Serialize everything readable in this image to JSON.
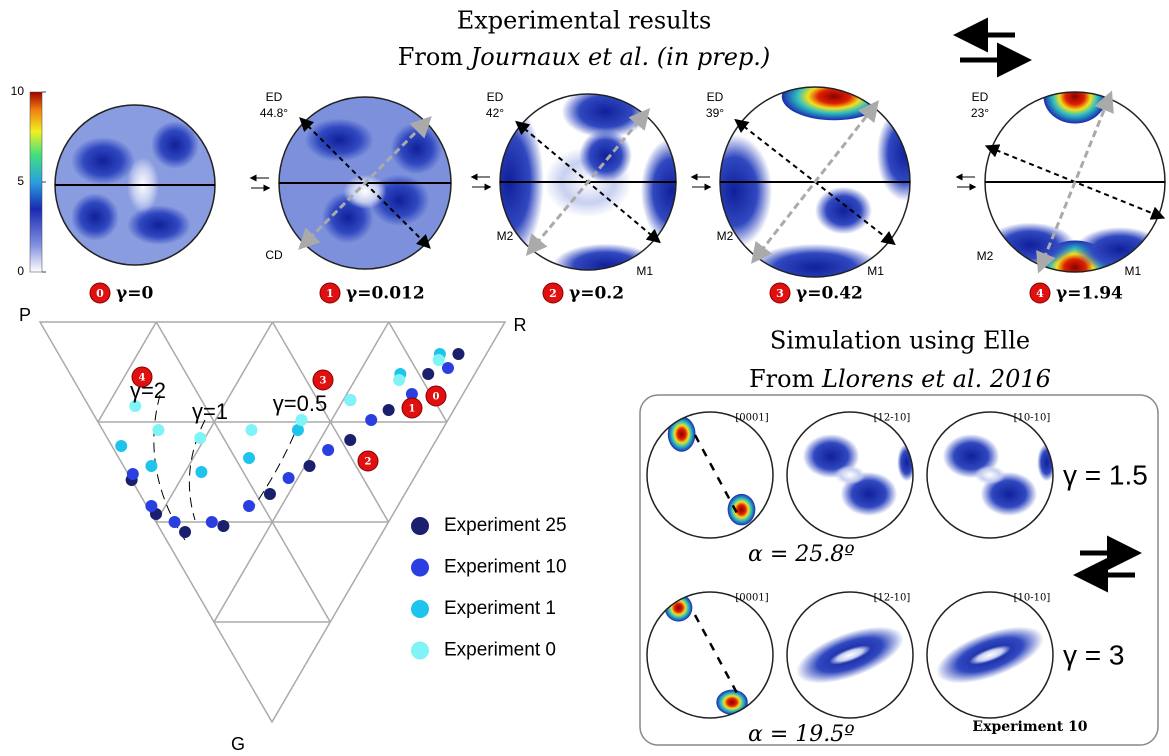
{
  "experimental": {
    "title": "Experimental results",
    "source_prefix": "From",
    "source": "Journaux et al. (in prep.)",
    "colorbar_ticks": [
      0,
      5,
      10
    ],
    "panels": [
      {
        "badge": "0",
        "strain": "γ=0"
      },
      {
        "badge": "1",
        "strain": "γ=0.012",
        "ed": "ED",
        "angle": "44.8°",
        "cd": "CD"
      },
      {
        "badge": "2",
        "strain": "γ=0.2",
        "ed": "ED",
        "angle": "42°",
        "m1": "M1",
        "m2": "M2"
      },
      {
        "badge": "3",
        "strain": "γ=0.42",
        "ed": "ED",
        "angle": "39°",
        "m1": "M1",
        "m2": "M2"
      },
      {
        "badge": "4",
        "strain": "γ=1.94",
        "ed": "ED",
        "angle": "23°",
        "m1": "M1",
        "m2": "M2"
      }
    ]
  },
  "chart_data": {
    "type": "ternary",
    "vertices": [
      "P",
      "R",
      "G"
    ],
    "annotations": [
      "γ=2",
      "γ=1",
      "γ=0.5"
    ],
    "markers": [
      "4",
      "3",
      "1",
      "0",
      "2"
    ],
    "series": [
      {
        "name": "Experiment 25",
        "color": "#1a1f6e",
        "r": [
          0.0,
          0.01,
          0.05,
          0.14,
          0.28,
          0.4,
          0.52,
          0.64,
          0.77,
          0.86
        ],
        "g": [
          0.395,
          0.48,
          0.525,
          0.51,
          0.43,
          0.36,
          0.295,
          0.22,
          0.13,
          0.08
        ]
      },
      {
        "name": "Experiment 10",
        "color": "#2b3fe0",
        "r": [
          0.01,
          0.01,
          0.04,
          0.12,
          0.22,
          0.34,
          0.46,
          0.59,
          0.71,
          0.82
        ],
        "g": [
          0.38,
          0.46,
          0.5,
          0.5,
          0.46,
          0.39,
          0.32,
          0.245,
          0.18,
          0.115
        ]
      },
      {
        "name": "Experiment 1",
        "color": "#1fc4ec",
        "r": [
          0.02,
          0.06,
          0.16,
          0.28,
          0.42,
          0.57,
          0.71,
          0.82
        ],
        "g": [
          0.31,
          0.36,
          0.375,
          0.34,
          0.27,
          0.195,
          0.13,
          0.08
        ]
      },
      {
        "name": "Experiment 0",
        "color": "#7ff3f5",
        "r": [
          0.1,
          0.12,
          0.2,
          0.32,
          0.44,
          0.57,
          0.7,
          0.81
        ],
        "g": [
          0.21,
          0.27,
          0.29,
          0.27,
          0.245,
          0.195,
          0.145,
          0.095
        ]
      }
    ]
  },
  "simulation": {
    "title": "Simulation using Elle",
    "source_prefix": "From",
    "source": "Llorens et al. 2016",
    "axes": [
      "[0001]",
      "[12-10]",
      "[10-10]"
    ],
    "rows": [
      {
        "strain": "γ = 1.5",
        "alpha": "α = 25.8º"
      },
      {
        "strain": "γ = 3",
        "alpha": "α = 19.5º"
      }
    ],
    "footer": "Experiment 10"
  }
}
